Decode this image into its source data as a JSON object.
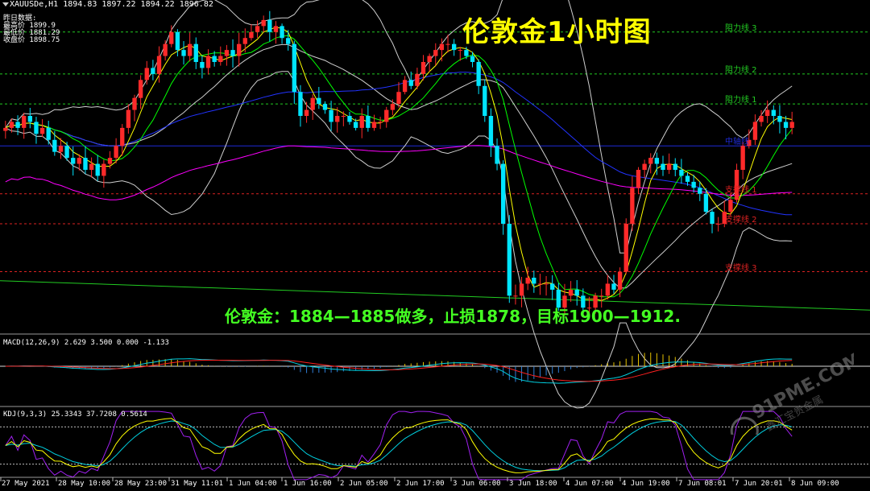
{
  "header": {
    "symbol_line": "XAUUSDe,H1  1894.83 1897.22 1894.22 1896.82",
    "prev_label": "昨日数据:",
    "high_line": "最高价 1899.9",
    "low_line": "最低价 1881.29",
    "close_line": "收盘价 1898.75"
  },
  "title": "伦敦金1小时图",
  "advice": "伦敦金：1884—1885做多，止损1878，目标1900—1912.",
  "levels": [
    {
      "label": "阻力线 3",
      "price": 1912.0,
      "color": "#22cc22"
    },
    {
      "label": "阻力线 2",
      "price": 1905.0,
      "color": "#22cc22"
    },
    {
      "label": "阻力线 1",
      "price": 1900.0,
      "color": "#22cc22"
    },
    {
      "label": "中轴线",
      "price": 1893.0,
      "color": "#1e2bd8"
    },
    {
      "label": "支撑线 1",
      "price": 1885.0,
      "color": "#dd2222"
    },
    {
      "label": "支撑线 2",
      "price": 1880.0,
      "color": "#dd2222"
    },
    {
      "label": "支撑线 3",
      "price": 1872.0,
      "color": "#dd2222"
    }
  ],
  "macd_header": "MACD(12,26,9) 2.629 3.500 0.000 -1.133",
  "kdj_header": "KDJ(9,3,3) 25.3343 37.7208 0.5614",
  "watermark": {
    "brand": "91PME.COM",
    "sub": "鑫汇宝贵金属"
  },
  "colors": {
    "bull": "#ff2a2a",
    "bear": "#00e5ff",
    "ma_fast": "#ffff00",
    "ma_mid": "#00ff00",
    "ma_slow": "#ff00ff",
    "ma_blue": "#2233ff",
    "boll": "#cfcfcf",
    "trend": "#22cc22"
  },
  "chart_data": {
    "type": "candlestick",
    "symbol": "XAUUSDe",
    "timeframe": "H1",
    "ylim": [
      1862,
      1916
    ],
    "x_ticks": [
      "27 May 2021",
      "28 May 10:00",
      "28 May 23:00",
      "31 May 11:01",
      "1 Jun 04:00",
      "1 Jun 16:00",
      "2 Jun 05:00",
      "2 Jun 17:00",
      "3 Jun 06:00",
      "3 Jun 18:00",
      "4 Jun 07:00",
      "4 Jun 19:00",
      "7 Jun 08:01",
      "7 Jun 20:01",
      "8 Jun 09:00"
    ],
    "close_series": [
      1896,
      1897,
      1896,
      1898,
      1897,
      1895,
      1896,
      1894,
      1892,
      1893,
      1891,
      1890,
      1891,
      1889,
      1890,
      1888,
      1890,
      1891,
      1893,
      1896,
      1899,
      1901,
      1904,
      1906,
      1905,
      1908,
      1910,
      1912,
      1909,
      1908,
      1910,
      1907,
      1906,
      1908,
      1907,
      1908,
      1909,
      1908,
      1910,
      1911,
      1912,
      1913,
      1914,
      1912,
      1913,
      1911,
      1910,
      1902,
      1898,
      1899,
      1901,
      1900,
      1899,
      1897,
      1898,
      1898,
      1897,
      1896,
      1898,
      1896,
      1897,
      1897,
      1899,
      1900,
      1902,
      1904,
      1903,
      1905,
      1907,
      1908,
      1909,
      1910,
      1910,
      1909,
      1909,
      1908,
      1907,
      1903,
      1898,
      1893,
      1890,
      1880,
      1868,
      1868,
      1870,
      1871,
      1870,
      1870,
      1870,
      1869,
      1866,
      1868,
      1869,
      1868,
      1866,
      1866,
      1868,
      1868,
      1870,
      1869,
      1872,
      1880,
      1886,
      1889,
      1890,
      1891,
      1890,
      1889,
      1890,
      1889,
      1888,
      1887,
      1886,
      1885,
      1882,
      1880,
      1880,
      1882,
      1884,
      1889,
      1893,
      1894,
      1897,
      1898,
      1899,
      1898,
      1897,
      1896,
      1897
    ]
  }
}
